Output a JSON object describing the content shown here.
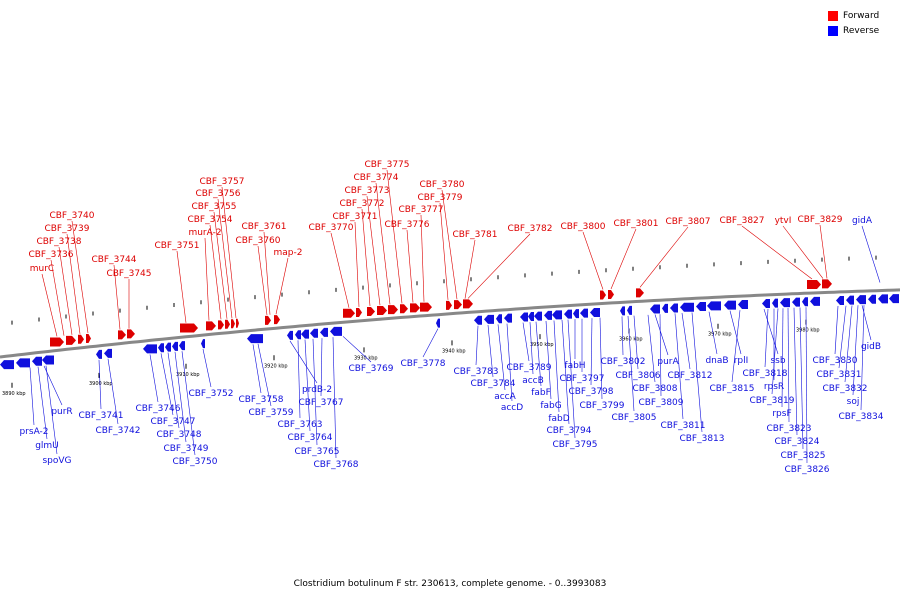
{
  "title": "Clostridium botulinum F str. 230613, complete genome. - 0..3993083",
  "legend": [
    {
      "label": "Forward",
      "color": "#ff0000"
    },
    {
      "label": "Reverse",
      "color": "#0000ff"
    }
  ],
  "colors": {
    "forward": "#dd0000",
    "reverse": "#1010dd",
    "axis": "#888888"
  },
  "scale_labels": [
    "3890 kbp",
    "3900 kbp",
    "3910 kbp",
    "3920 kbp",
    "3930 kbp",
    "3940 kbp",
    "3950 kbp",
    "3960 kbp",
    "3970 kbp",
    "3980 kbp"
  ],
  "forward_genes": [
    "murC",
    "CBF_3736",
    "CBF_3738",
    "CBF_3739",
    "CBF_3740",
    "CBF_3744",
    "CBF_3745",
    "CBF_3751",
    "murA-2",
    "CBF_3754",
    "CBF_3755",
    "CBF_3756",
    "CBF_3757",
    "CBF_3760",
    "CBF_3761",
    "map-2",
    "CBF_3770",
    "CBF_3771",
    "CBF_3772",
    "CBF_3773",
    "CBF_3774",
    "CBF_3775",
    "CBF_3776",
    "CBF_3777",
    "CBF_3779",
    "CBF_3780",
    "CBF_3781",
    "CBF_3782",
    "CBF_3800",
    "CBF_3801",
    "CBF_3807",
    "CBF_3827",
    "ytvI",
    "CBF_3829"
  ],
  "reverse_genes": [
    "gidA",
    "purR",
    "prsA-2",
    "glmU",
    "spoVG",
    "CBF_3741",
    "CBF_3742",
    "CBF_3746",
    "CBF_3747",
    "CBF_3748",
    "CBF_3749",
    "CBF_3750",
    "CBF_3752",
    "CBF_3758",
    "CBF_3759",
    "prdB-2",
    "CBF_3763",
    "CBF_3764",
    "CBF_3765",
    "CBF_3767",
    "CBF_3768",
    "CBF_3769",
    "CBF_3778",
    "CBF_3783",
    "CBF_3784",
    "accA",
    "accD",
    "CBF_3789",
    "accB",
    "fabF",
    "fabG",
    "fabD",
    "CBF_3794",
    "CBF_3795",
    "fabH",
    "CBF_3797",
    "CBF_3798",
    "CBF_3799",
    "CBF_3802",
    "CBF_3805",
    "CBF_3806",
    "CBF_3808",
    "purA",
    "CBF_3809",
    "CBF_3811",
    "CBF_3812",
    "CBF_3813",
    "dnaB",
    "rplI",
    "CBF_3815",
    "ssb",
    "CBF_3818",
    "rpsR",
    "CBF_3819",
    "rpsF",
    "CBF_3823",
    "CBF_3824",
    "CBF_3825",
    "CBF_3826",
    "gidB",
    "CBF_3830",
    "CBF_3831",
    "CBF_3832",
    "soj",
    "CBF_3834"
  ]
}
